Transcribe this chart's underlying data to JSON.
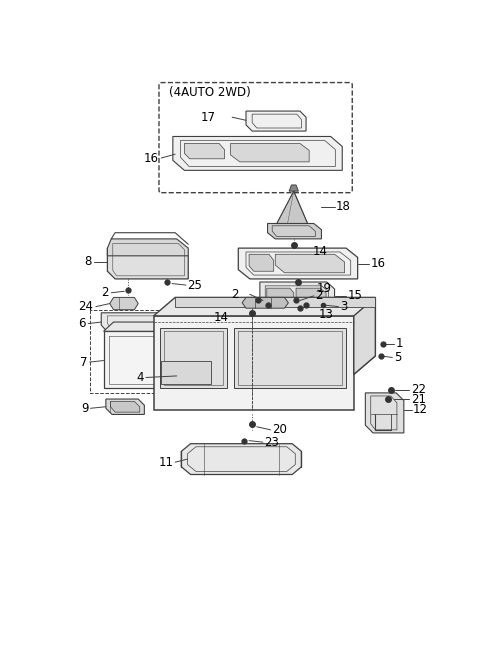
{
  "bg_color": "#ffffff",
  "line_color": "#404040",
  "label_color": "#000000",
  "figsize": [
    4.8,
    6.56
  ],
  "dpi": 100
}
